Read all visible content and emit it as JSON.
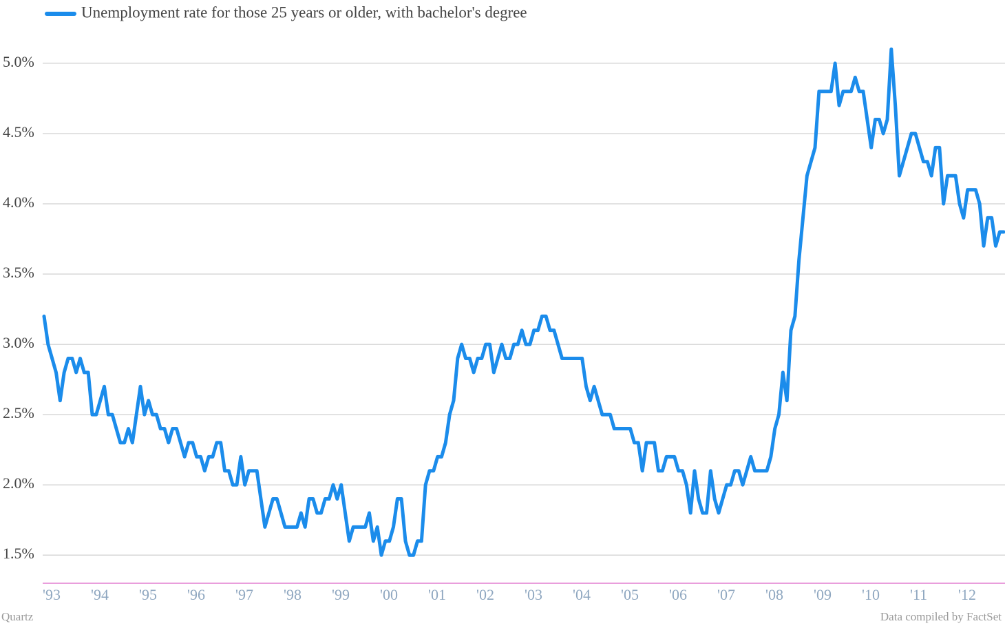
{
  "chart_data": {
    "type": "line",
    "source": "Data compiled by FactSet",
    "credit": "Quartz",
    "legend": "top-left",
    "grid": true,
    "ylim": [
      1.3,
      5.3
    ],
    "yticks": [
      {
        "value": 1.5,
        "label": "1.5%"
      },
      {
        "value": 2,
        "label": "2.0%"
      },
      {
        "value": 2.5,
        "label": "2.5%"
      },
      {
        "value": 3,
        "label": "3.0%"
      },
      {
        "value": 3.5,
        "label": "3.5%"
      },
      {
        "value": 4,
        "label": "4.0%"
      },
      {
        "value": 4.5,
        "label": "4.5%"
      },
      {
        "value": 5,
        "label": "5.0%"
      }
    ],
    "categories": [
      "'93",
      null,
      null,
      null,
      null,
      null,
      null,
      null,
      null,
      null,
      null,
      null,
      "'94",
      null,
      null,
      null,
      null,
      null,
      null,
      null,
      null,
      null,
      null,
      null,
      "'95",
      null,
      null,
      null,
      null,
      null,
      null,
      null,
      null,
      null,
      null,
      null,
      "'96",
      null,
      null,
      null,
      null,
      null,
      null,
      null,
      null,
      null,
      null,
      null,
      "'97",
      null,
      null,
      null,
      null,
      null,
      null,
      null,
      null,
      null,
      null,
      null,
      "'98",
      null,
      null,
      null,
      null,
      null,
      null,
      null,
      null,
      null,
      null,
      null,
      "'99",
      null,
      null,
      null,
      null,
      null,
      null,
      null,
      null,
      null,
      null,
      null,
      "'00",
      null,
      null,
      null,
      null,
      null,
      null,
      null,
      null,
      null,
      null,
      null,
      "'01",
      null,
      null,
      null,
      null,
      null,
      null,
      null,
      null,
      null,
      null,
      null,
      "'02",
      null,
      null,
      null,
      null,
      null,
      null,
      null,
      null,
      null,
      null,
      null,
      "'03",
      null,
      null,
      null,
      null,
      null,
      null,
      null,
      null,
      null,
      null,
      null,
      "'04",
      null,
      null,
      null,
      null,
      null,
      null,
      null,
      null,
      null,
      null,
      null,
      "'05",
      null,
      null,
      null,
      null,
      null,
      null,
      null,
      null,
      null,
      null,
      null,
      "'06",
      null,
      null,
      null,
      null,
      null,
      null,
      null,
      null,
      null,
      null,
      null,
      "'07",
      null,
      null,
      null,
      null,
      null,
      null,
      null,
      null,
      null,
      null,
      null,
      "'08",
      null,
      null,
      null,
      null,
      null,
      null,
      null,
      null,
      null,
      null,
      null,
      "'09",
      null,
      null,
      null,
      null,
      null,
      null,
      null,
      null,
      null,
      null,
      null,
      "'10",
      null,
      null,
      null,
      null,
      null,
      null,
      null,
      null,
      null,
      null,
      null,
      "'11",
      null,
      null,
      null,
      null,
      null,
      null,
      null,
      null,
      null,
      null,
      null,
      "'12",
      null,
      null,
      null,
      null,
      null,
      null,
      null,
      null,
      null,
      null,
      null
    ],
    "series": [
      {
        "name": "Unemployment rate for those 25 years or older, with bachelor's degree",
        "color": "#1b8ceb",
        "values": [
          3.2,
          3.0,
          2.9,
          2.8,
          2.6,
          2.8,
          2.9,
          2.9,
          2.8,
          2.9,
          2.8,
          2.8,
          2.5,
          2.5,
          2.6,
          2.7,
          2.5,
          2.5,
          2.4,
          2.3,
          2.3,
          2.4,
          2.3,
          2.5,
          2.7,
          2.5,
          2.6,
          2.5,
          2.5,
          2.4,
          2.4,
          2.3,
          2.4,
          2.4,
          2.3,
          2.2,
          2.3,
          2.3,
          2.2,
          2.2,
          2.1,
          2.2,
          2.2,
          2.3,
          2.3,
          2.1,
          2.1,
          2.0,
          2.0,
          2.2,
          2.0,
          2.1,
          2.1,
          2.1,
          1.9,
          1.7,
          1.8,
          1.9,
          1.9,
          1.8,
          1.7,
          1.7,
          1.7,
          1.7,
          1.8,
          1.7,
          1.9,
          1.9,
          1.8,
          1.8,
          1.9,
          1.9,
          2.0,
          1.9,
          2.0,
          1.8,
          1.6,
          1.7,
          1.7,
          1.7,
          1.7,
          1.8,
          1.6,
          1.7,
          1.5,
          1.6,
          1.6,
          1.7,
          1.9,
          1.9,
          1.6,
          1.5,
          1.5,
          1.6,
          1.6,
          2.0,
          2.1,
          2.1,
          2.2,
          2.2,
          2.3,
          2.5,
          2.6,
          2.9,
          3.0,
          2.9,
          2.9,
          2.8,
          2.9,
          2.9,
          3.0,
          3.0,
          2.8,
          2.9,
          3.0,
          2.9,
          2.9,
          3.0,
          3.0,
          3.1,
          3.0,
          3.0,
          3.1,
          3.1,
          3.2,
          3.2,
          3.1,
          3.1,
          3.0,
          2.9,
          2.9,
          2.9,
          2.9,
          2.9,
          2.9,
          2.7,
          2.6,
          2.7,
          2.6,
          2.5,
          2.5,
          2.5,
          2.4,
          2.4,
          2.4,
          2.4,
          2.4,
          2.3,
          2.3,
          2.1,
          2.3,
          2.3,
          2.3,
          2.1,
          2.1,
          2.2,
          2.2,
          2.2,
          2.1,
          2.1,
          2.0,
          1.8,
          2.1,
          1.9,
          1.8,
          1.8,
          2.1,
          1.9,
          1.8,
          1.9,
          2.0,
          2.0,
          2.1,
          2.1,
          2.0,
          2.1,
          2.2,
          2.1,
          2.1,
          2.1,
          2.1,
          2.2,
          2.4,
          2.5,
          2.8,
          2.6,
          3.1,
          3.2,
          3.6,
          3.9,
          4.2,
          4.3,
          4.4,
          4.8,
          4.8,
          4.8,
          4.8,
          5.0,
          4.7,
          4.8,
          4.8,
          4.8,
          4.9,
          4.8,
          4.8,
          4.6,
          4.4,
          4.6,
          4.6,
          4.5,
          4.6,
          5.1,
          4.7,
          4.2,
          4.3,
          4.4,
          4.5,
          4.5,
          4.4,
          4.3,
          4.3,
          4.2,
          4.4,
          4.4,
          4.0,
          4.2,
          4.2,
          4.2,
          4.0,
          3.9,
          4.1,
          4.1,
          4.1,
          4.0,
          3.7,
          3.9,
          3.9,
          3.7,
          3.8,
          3.8
        ]
      }
    ]
  }
}
